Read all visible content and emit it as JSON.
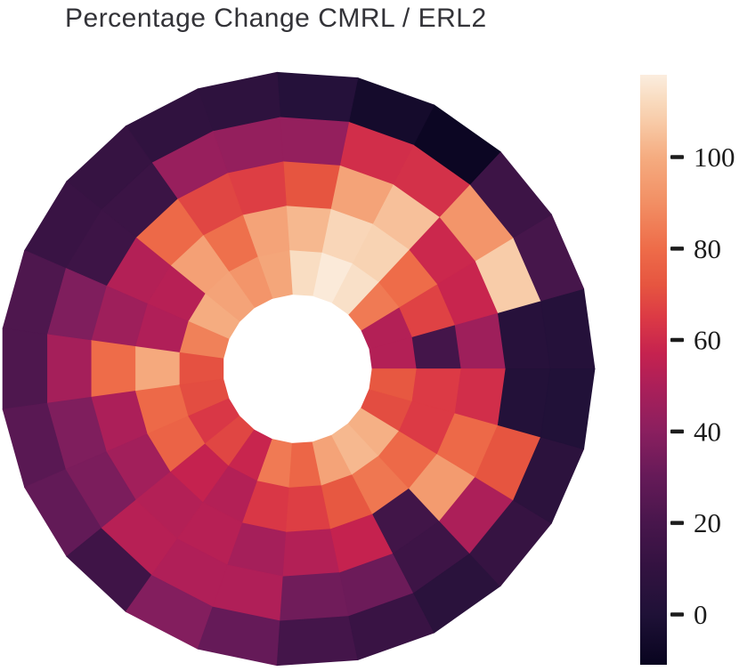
{
  "title": {
    "text": "Percentage Change CMRL / ERL2",
    "color": "#333338"
  },
  "chart_data": {
    "type": "heatmap",
    "projection": "polar",
    "title": "Percentage Change CMRL / ERL2",
    "n_sectors": 23,
    "n_rings": 5,
    "sector_order": "counterclockwise starting at 0 deg (3 o'clock seam)",
    "theta_bin_deg": 15.652,
    "value_order": "per sector: inner ring to outer ring",
    "values": [
      [
        52,
        18,
        46,
        4,
        3
      ],
      [
        52,
        67,
        58,
        108,
        19
      ],
      [
        84,
        80,
        59,
        92,
        15
      ],
      [
        114,
        110,
        105,
        62,
        -9
      ],
      [
        117,
        111,
        97,
        61,
        -5
      ],
      [
        113,
        103,
        72,
        43,
        3
      ],
      [
        98,
        97,
        66,
        43,
        8
      ],
      [
        92,
        81,
        68,
        44,
        9
      ],
      [
        97,
        96,
        79,
        14,
        12
      ],
      [
        100,
        53,
        52,
        15,
        13
      ],
      [
        86,
        51,
        46,
        37,
        22
      ],
      [
        71,
        99,
        80,
        48,
        22
      ],
      [
        70,
        79,
        50,
        37,
        26
      ],
      [
        64,
        77,
        47,
        36,
        29
      ],
      [
        68,
        57,
        52,
        53,
        16
      ],
      [
        58,
        52,
        53,
        51,
        38
      ],
      [
        84,
        64,
        48,
        51,
        30
      ],
      [
        78,
        66,
        52,
        33,
        18
      ],
      [
        97,
        73,
        57,
        32,
        13
      ],
      [
        103,
        83,
        17,
        15,
        6
      ],
      [
        101,
        79,
        94,
        50,
        12
      ],
      [
        70,
        65,
        79,
        72,
        7
      ],
      [
        73,
        65,
        61,
        2,
        1
      ]
    ],
    "vmin": -11,
    "vmax": 118,
    "colormap": "rocket",
    "colormap_stops": [
      [
        -11,
        "#08041F"
      ],
      [
        0,
        "#1F1137"
      ],
      [
        10,
        "#321240"
      ],
      [
        20,
        "#48164C"
      ],
      [
        30,
        "#651A58"
      ],
      [
        40,
        "#8A1F5F"
      ],
      [
        50,
        "#AC1F59"
      ],
      [
        57,
        "#C5224F"
      ],
      [
        65,
        "#DC3A45"
      ],
      [
        72,
        "#E65540"
      ],
      [
        80,
        "#EE6C49"
      ],
      [
        90,
        "#F28F64"
      ],
      [
        100,
        "#F5AC80"
      ],
      [
        108,
        "#F8CCA9"
      ],
      [
        113,
        "#F9DDC2"
      ],
      [
        118,
        "#FBEDDF"
      ]
    ],
    "colorbar": {
      "position": "right",
      "ticks": [
        0,
        20,
        40,
        60,
        80,
        100
      ]
    },
    "grid": false,
    "legend": false,
    "background": "#ffffff"
  }
}
